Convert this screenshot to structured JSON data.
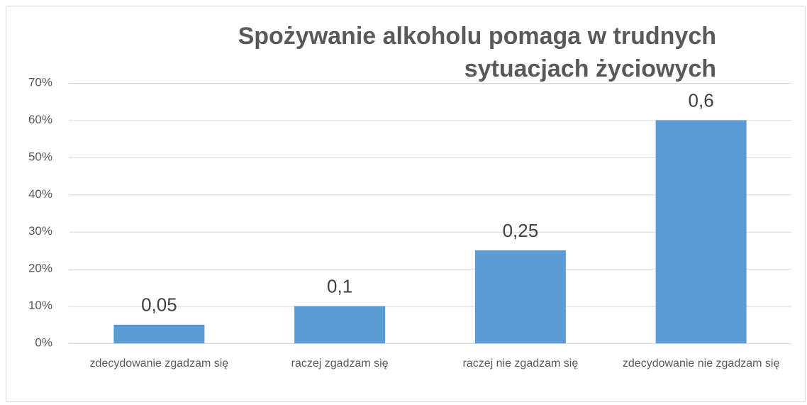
{
  "chart_data": {
    "type": "bar",
    "title": "Spożywanie alkoholu pomaga w trudnych sytuacjach życiowych",
    "categories": [
      "zdecydowanie zgadzam się",
      "raczej zgadzam się",
      "raczej nie zgadzam się",
      "zdecydowanie nie zgadzam się"
    ],
    "values": [
      5,
      10,
      25,
      60
    ],
    "value_labels": [
      "0,05",
      "0,1",
      "0,25",
      "0,6"
    ],
    "color": "#5b9bd5",
    "ylim": [
      0,
      70
    ],
    "yticks": [
      {
        "value": 0,
        "label": "0%"
      },
      {
        "value": 10,
        "label": "10%"
      },
      {
        "value": 20,
        "label": "20%"
      },
      {
        "value": 30,
        "label": "30%"
      },
      {
        "value": 40,
        "label": "40%"
      },
      {
        "value": 50,
        "label": "50%"
      },
      {
        "value": 60,
        "label": "60%"
      },
      {
        "value": 70,
        "label": "70%"
      }
    ],
    "grid": true
  }
}
